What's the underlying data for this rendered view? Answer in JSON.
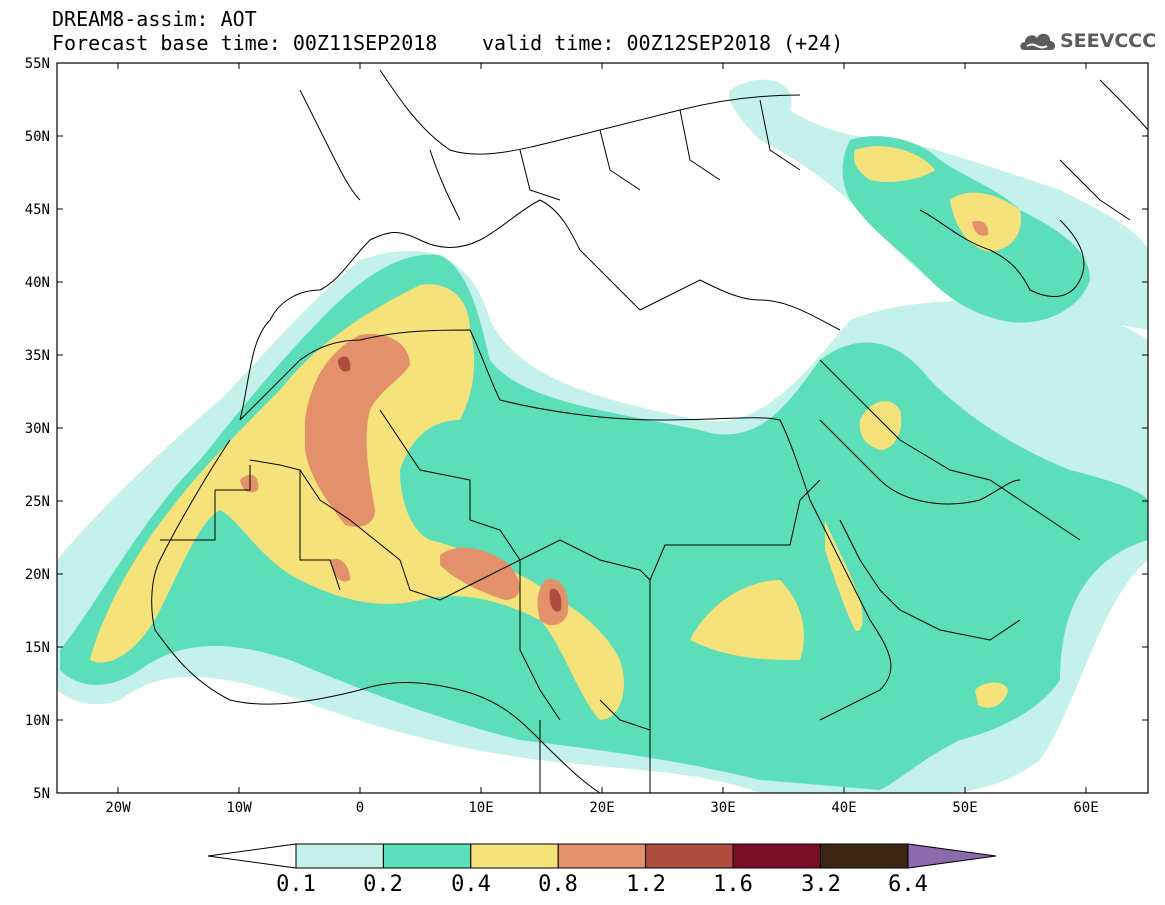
{
  "header": {
    "line1": "DREAM8-assim: AOT",
    "line2_left": "Forecast base time: 00Z11SEP2018",
    "line2_right": "valid time: 00Z12SEP2018 (+24)"
  },
  "logo": {
    "icon": "cloud-icon",
    "text": "SEEVCCC"
  },
  "axes": {
    "lat_labels": [
      "55N",
      "50N",
      "45N",
      "40N",
      "35N",
      "30N",
      "25N",
      "20N",
      "15N",
      "10N",
      "5N"
    ],
    "lon_labels": [
      "20W",
      "10W",
      "0",
      "10E",
      "20E",
      "30E",
      "40E",
      "50E",
      "60E"
    ],
    "lon_range": [
      -25,
      65
    ],
    "lat_range": [
      5,
      55
    ]
  },
  "colorbar": {
    "labels": [
      "0.1",
      "0.2",
      "0.4",
      "0.8",
      "1.2",
      "1.6",
      "3.2",
      "6.4"
    ],
    "colors": [
      "#c4f2ea",
      "#5cdeb8",
      "#f5e27a",
      "#e3916a",
      "#ae4d3e",
      "#7a0f28",
      "#3d2514",
      "#8c6aab"
    ]
  }
}
